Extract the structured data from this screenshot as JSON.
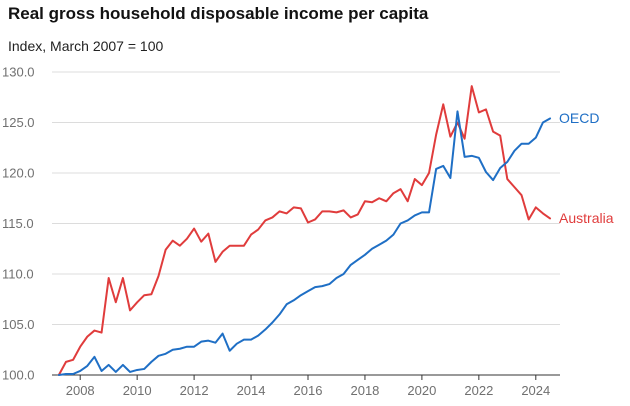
{
  "title": "Real gross household disposable income per capita",
  "subtitle": "Index, March 2007 = 100",
  "chart_data": {
    "type": "line",
    "title": "Real gross household disposable income per capita",
    "subtitle": "Index, March 2007 = 100",
    "xlabel": "",
    "ylabel": "",
    "xlim": [
      2007.15,
      2024.85
    ],
    "ylim": [
      100,
      130
    ],
    "y_ticks": [
      "100.0",
      "105.0",
      "110.0",
      "115.0",
      "120.0",
      "125.0",
      "130.0"
    ],
    "x_ticks": [
      "2008",
      "2010",
      "2012",
      "2014",
      "2016",
      "2018",
      "2020",
      "2022",
      "2024"
    ],
    "grid": "horizontal",
    "legend": "direct labels at line ends (right)",
    "series": [
      {
        "name": "Australia",
        "color": "#e03c3c",
        "x": [
          2007.25,
          2007.5,
          2007.75,
          2008.0,
          2008.25,
          2008.5,
          2008.75,
          2009.0,
          2009.25,
          2009.5,
          2009.75,
          2010.0,
          2010.25,
          2010.5,
          2010.75,
          2011.0,
          2011.25,
          2011.5,
          2011.75,
          2012.0,
          2012.25,
          2012.5,
          2012.75,
          2013.0,
          2013.25,
          2013.5,
          2013.75,
          2014.0,
          2014.25,
          2014.5,
          2014.75,
          2015.0,
          2015.25,
          2015.5,
          2015.75,
          2016.0,
          2016.25,
          2016.5,
          2016.75,
          2017.0,
          2017.25,
          2017.5,
          2017.75,
          2018.0,
          2018.25,
          2018.5,
          2018.75,
          2019.0,
          2019.25,
          2019.5,
          2019.75,
          2020.0,
          2020.25,
          2020.5,
          2020.75,
          2021.0,
          2021.25,
          2021.5,
          2021.75,
          2022.0,
          2022.25,
          2022.5,
          2022.75,
          2023.0,
          2023.25,
          2023.5,
          2023.75,
          2024.0,
          2024.25,
          2024.5
        ],
        "values": [
          100.0,
          101.3,
          101.5,
          102.8,
          103.8,
          104.4,
          104.2,
          109.6,
          107.2,
          109.6,
          106.4,
          107.2,
          107.9,
          108.0,
          109.8,
          112.4,
          113.3,
          112.8,
          113.5,
          114.5,
          113.2,
          114.0,
          111.2,
          112.2,
          112.8,
          112.8,
          112.8,
          113.9,
          114.4,
          115.3,
          115.6,
          116.2,
          116.0,
          116.6,
          116.5,
          115.1,
          115.4,
          116.2,
          116.2,
          116.1,
          116.3,
          115.6,
          115.9,
          117.2,
          117.1,
          117.5,
          117.2,
          118.0,
          118.4,
          117.2,
          119.4,
          118.8,
          120.0,
          123.8,
          126.8,
          123.6,
          125.0,
          123.4,
          128.6,
          126.0,
          126.3,
          124.1,
          123.7,
          119.4,
          118.6,
          117.8,
          115.4,
          116.6,
          116.0,
          115.5
        ]
      },
      {
        "name": "OECD",
        "color": "#1f6fc5",
        "x": [
          2007.25,
          2007.5,
          2007.75,
          2008.0,
          2008.25,
          2008.5,
          2008.75,
          2009.0,
          2009.25,
          2009.5,
          2009.75,
          2010.0,
          2010.25,
          2010.5,
          2010.75,
          2011.0,
          2011.25,
          2011.5,
          2011.75,
          2012.0,
          2012.25,
          2012.5,
          2012.75,
          2013.0,
          2013.25,
          2013.5,
          2013.75,
          2014.0,
          2014.25,
          2014.5,
          2014.75,
          2015.0,
          2015.25,
          2015.5,
          2015.75,
          2016.0,
          2016.25,
          2016.5,
          2016.75,
          2017.0,
          2017.25,
          2017.5,
          2017.75,
          2018.0,
          2018.25,
          2018.5,
          2018.75,
          2019.0,
          2019.25,
          2019.5,
          2019.75,
          2020.0,
          2020.25,
          2020.5,
          2020.75,
          2021.0,
          2021.25,
          2021.5,
          2021.75,
          2022.0,
          2022.25,
          2022.5,
          2022.75,
          2023.0,
          2023.25,
          2023.5,
          2023.75,
          2024.0,
          2024.25,
          2024.5
        ],
        "values": [
          100.0,
          100.1,
          100.1,
          100.4,
          100.9,
          101.8,
          100.4,
          101.0,
          100.3,
          101.0,
          100.3,
          100.5,
          100.6,
          101.3,
          101.9,
          102.1,
          102.5,
          102.6,
          102.8,
          102.8,
          103.3,
          103.4,
          103.2,
          104.1,
          102.4,
          103.1,
          103.5,
          103.5,
          103.9,
          104.5,
          105.2,
          106.0,
          107.0,
          107.4,
          107.9,
          108.3,
          108.7,
          108.8,
          109.0,
          109.6,
          110.0,
          110.9,
          111.4,
          111.9,
          112.5,
          112.9,
          113.3,
          113.9,
          115.0,
          115.3,
          115.8,
          116.1,
          116.1,
          120.4,
          120.7,
          119.5,
          126.1,
          121.6,
          121.7,
          121.5,
          120.1,
          119.3,
          120.5,
          121.1,
          122.2,
          122.9,
          122.9,
          123.5,
          125.0,
          125.4
        ]
      }
    ]
  }
}
